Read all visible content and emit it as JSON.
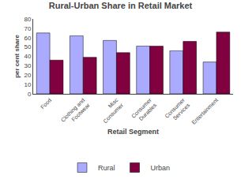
{
  "chart_data": {
    "type": "bar",
    "title": "Rural-Urban Share in Retail Market",
    "xlabel": "Retail Segment",
    "ylabel": "per cent share",
    "categories": [
      "Food",
      "Clothing and\nFootwear",
      "Misc\nConsumer",
      "Consumer\nDurables",
      "Consumer\nServices",
      "Entertainment"
    ],
    "series": [
      {
        "name": "Rural",
        "color": "#aaaaff",
        "values": [
          65,
          62,
          57,
          51,
          46,
          34
        ]
      },
      {
        "name": "Urban",
        "color": "#800040",
        "values": [
          36,
          39,
          44,
          51,
          56,
          66
        ]
      }
    ],
    "ylim": [
      0,
      80
    ],
    "yticks": [
      0,
      10,
      20,
      30,
      40,
      50,
      60,
      70,
      80
    ],
    "grid": false,
    "legend": "bottom"
  }
}
